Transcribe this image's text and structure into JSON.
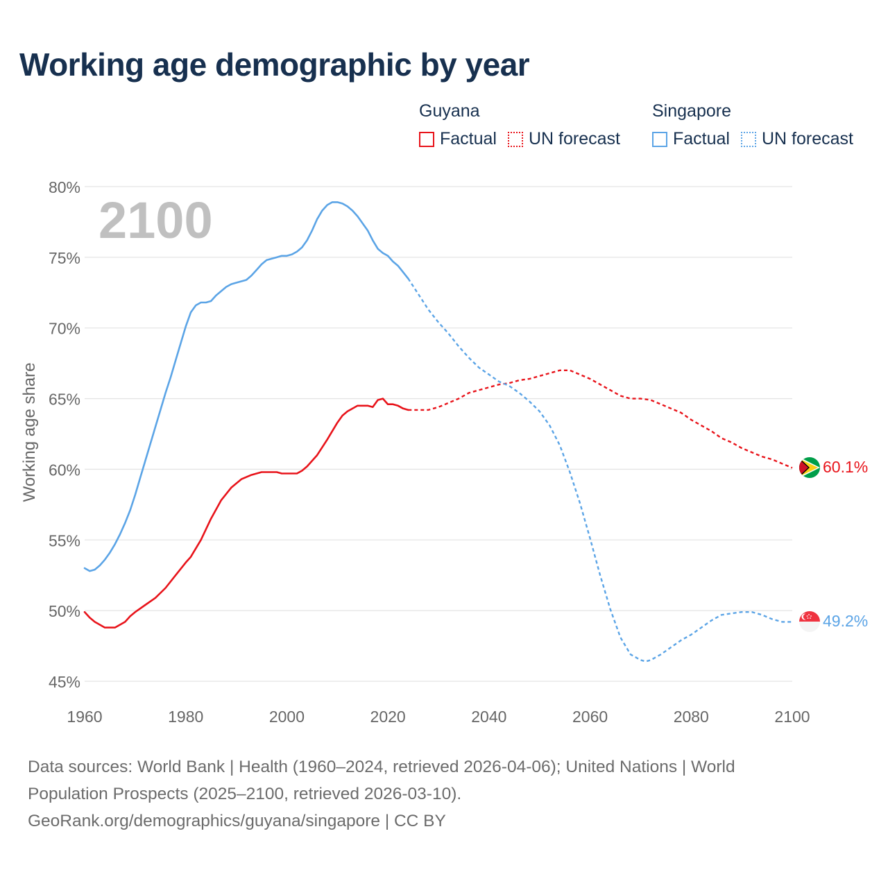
{
  "title": "Working age demographic by year",
  "legend": {
    "groups": [
      {
        "name": "Guyana",
        "factual_label": "Factual",
        "forecast_label": "UN forecast",
        "color": "#e8131a"
      },
      {
        "name": "Singapore",
        "factual_label": "Factual",
        "forecast_label": "UN forecast",
        "color": "#5ba4e6"
      }
    ]
  },
  "flags": {
    "guyana": "guyana-flag-icon",
    "singapore": "singapore-flag-icon"
  },
  "chart_data": {
    "type": "line",
    "title": "Working age demographic by year",
    "year_label": "2100",
    "xlabel": "",
    "ylabel": "Working age share",
    "xlim": [
      1960,
      2100
    ],
    "ylim": [
      45,
      80
    ],
    "x_ticks": [
      1960,
      1980,
      2000,
      2020,
      2040,
      2060,
      2080,
      2100
    ],
    "y_ticks": [
      45,
      50,
      55,
      60,
      65,
      70,
      75,
      80
    ],
    "y_tick_labels": [
      "45%",
      "50%",
      "55%",
      "60%",
      "65%",
      "70%",
      "75%",
      "80%"
    ],
    "grid": true,
    "factual_end_year": 2024,
    "series": [
      {
        "name": "Guyana",
        "color": "#e8131a",
        "end_label": "60.1%",
        "points": [
          [
            1960,
            49.9
          ],
          [
            1961,
            49.5
          ],
          [
            1962,
            49.2
          ],
          [
            1963,
            49.0
          ],
          [
            1964,
            48.8
          ],
          [
            1965,
            48.8
          ],
          [
            1966,
            48.8
          ],
          [
            1967,
            49.0
          ],
          [
            1968,
            49.2
          ],
          [
            1969,
            49.6
          ],
          [
            1970,
            49.9
          ],
          [
            1972,
            50.4
          ],
          [
            1974,
            50.9
          ],
          [
            1976,
            51.6
          ],
          [
            1978,
            52.5
          ],
          [
            1980,
            53.4
          ],
          [
            1981,
            53.8
          ],
          [
            1983,
            55.0
          ],
          [
            1985,
            56.5
          ],
          [
            1987,
            57.8
          ],
          [
            1989,
            58.7
          ],
          [
            1991,
            59.3
          ],
          [
            1993,
            59.6
          ],
          [
            1995,
            59.8
          ],
          [
            1998,
            59.8
          ],
          [
            1999,
            59.7
          ],
          [
            2002,
            59.7
          ],
          [
            2003,
            59.9
          ],
          [
            2004,
            60.2
          ],
          [
            2006,
            61.0
          ],
          [
            2008,
            62.1
          ],
          [
            2010,
            63.3
          ],
          [
            2011,
            63.8
          ],
          [
            2012,
            64.1
          ],
          [
            2014,
            64.5
          ],
          [
            2016,
            64.5
          ],
          [
            2017,
            64.4
          ],
          [
            2018,
            64.9
          ],
          [
            2019,
            65.0
          ],
          [
            2020,
            64.6
          ],
          [
            2021,
            64.6
          ],
          [
            2022,
            64.5
          ],
          [
            2023,
            64.3
          ],
          [
            2024,
            64.2
          ],
          [
            2026,
            64.2
          ],
          [
            2028,
            64.2
          ],
          [
            2030,
            64.4
          ],
          [
            2032,
            64.7
          ],
          [
            2034,
            65.0
          ],
          [
            2036,
            65.4
          ],
          [
            2038,
            65.6
          ],
          [
            2040,
            65.8
          ],
          [
            2042,
            66.0
          ],
          [
            2044,
            66.1
          ],
          [
            2046,
            66.3
          ],
          [
            2048,
            66.4
          ],
          [
            2050,
            66.6
          ],
          [
            2052,
            66.8
          ],
          [
            2054,
            67.0
          ],
          [
            2056,
            67.0
          ],
          [
            2058,
            66.7
          ],
          [
            2060,
            66.4
          ],
          [
            2062,
            66.0
          ],
          [
            2064,
            65.6
          ],
          [
            2066,
            65.2
          ],
          [
            2068,
            65.0
          ],
          [
            2070,
            65.0
          ],
          [
            2072,
            64.9
          ],
          [
            2074,
            64.6
          ],
          [
            2076,
            64.3
          ],
          [
            2078,
            64.0
          ],
          [
            2080,
            63.5
          ],
          [
            2082,
            63.1
          ],
          [
            2084,
            62.7
          ],
          [
            2086,
            62.2
          ],
          [
            2088,
            61.9
          ],
          [
            2090,
            61.5
          ],
          [
            2092,
            61.2
          ],
          [
            2094,
            60.9
          ],
          [
            2096,
            60.7
          ],
          [
            2098,
            60.4
          ],
          [
            2100,
            60.1
          ]
        ]
      },
      {
        "name": "Singapore",
        "color": "#5ba4e6",
        "end_label": "49.2%",
        "points": [
          [
            1960,
            53.0
          ],
          [
            1961,
            52.8
          ],
          [
            1962,
            52.9
          ],
          [
            1963,
            53.2
          ],
          [
            1964,
            53.6
          ],
          [
            1965,
            54.1
          ],
          [
            1966,
            54.7
          ],
          [
            1967,
            55.4
          ],
          [
            1968,
            56.2
          ],
          [
            1969,
            57.1
          ],
          [
            1970,
            58.2
          ],
          [
            1971,
            59.4
          ],
          [
            1972,
            60.6
          ],
          [
            1973,
            61.8
          ],
          [
            1974,
            63.0
          ],
          [
            1975,
            64.2
          ],
          [
            1976,
            65.4
          ],
          [
            1977,
            66.5
          ],
          [
            1978,
            67.7
          ],
          [
            1979,
            68.9
          ],
          [
            1980,
            70.1
          ],
          [
            1981,
            71.1
          ],
          [
            1982,
            71.6
          ],
          [
            1983,
            71.8
          ],
          [
            1984,
            71.8
          ],
          [
            1985,
            71.9
          ],
          [
            1986,
            72.3
          ],
          [
            1987,
            72.6
          ],
          [
            1988,
            72.9
          ],
          [
            1989,
            73.1
          ],
          [
            1990,
            73.2
          ],
          [
            1991,
            73.3
          ],
          [
            1992,
            73.4
          ],
          [
            1993,
            73.7
          ],
          [
            1994,
            74.1
          ],
          [
            1995,
            74.5
          ],
          [
            1996,
            74.8
          ],
          [
            1997,
            74.9
          ],
          [
            1998,
            75.0
          ],
          [
            1999,
            75.1
          ],
          [
            2000,
            75.1
          ],
          [
            2001,
            75.2
          ],
          [
            2002,
            75.4
          ],
          [
            2003,
            75.7
          ],
          [
            2004,
            76.2
          ],
          [
            2005,
            76.9
          ],
          [
            2006,
            77.7
          ],
          [
            2007,
            78.3
          ],
          [
            2008,
            78.7
          ],
          [
            2009,
            78.9
          ],
          [
            2010,
            78.9
          ],
          [
            2011,
            78.8
          ],
          [
            2012,
            78.6
          ],
          [
            2013,
            78.3
          ],
          [
            2014,
            77.9
          ],
          [
            2015,
            77.4
          ],
          [
            2016,
            76.9
          ],
          [
            2017,
            76.2
          ],
          [
            2018,
            75.6
          ],
          [
            2019,
            75.3
          ],
          [
            2020,
            75.1
          ],
          [
            2021,
            74.7
          ],
          [
            2022,
            74.4
          ],
          [
            2024,
            73.5
          ],
          [
            2026,
            72.4
          ],
          [
            2028,
            71.3
          ],
          [
            2030,
            70.4
          ],
          [
            2032,
            69.6
          ],
          [
            2034,
            68.7
          ],
          [
            2036,
            67.9
          ],
          [
            2038,
            67.2
          ],
          [
            2040,
            66.7
          ],
          [
            2042,
            66.2
          ],
          [
            2044,
            65.9
          ],
          [
            2046,
            65.4
          ],
          [
            2048,
            64.8
          ],
          [
            2050,
            64.1
          ],
          [
            2052,
            63.1
          ],
          [
            2054,
            61.7
          ],
          [
            2056,
            59.8
          ],
          [
            2058,
            57.6
          ],
          [
            2060,
            55.1
          ],
          [
            2062,
            52.5
          ],
          [
            2064,
            50.1
          ],
          [
            2066,
            48.1
          ],
          [
            2068,
            46.9
          ],
          [
            2070,
            46.5
          ],
          [
            2071,
            46.4
          ],
          [
            2072,
            46.5
          ],
          [
            2074,
            46.9
          ],
          [
            2076,
            47.4
          ],
          [
            2078,
            47.9
          ],
          [
            2080,
            48.3
          ],
          [
            2082,
            48.8
          ],
          [
            2084,
            49.3
          ],
          [
            2086,
            49.7
          ],
          [
            2088,
            49.8
          ],
          [
            2090,
            49.9
          ],
          [
            2092,
            49.9
          ],
          [
            2094,
            49.7
          ],
          [
            2096,
            49.4
          ],
          [
            2098,
            49.2
          ],
          [
            2100,
            49.2
          ]
        ]
      }
    ]
  },
  "footer": {
    "line1": "Data sources: World Bank | Health (1960–2024, retrieved 2026-04-06); United Nations | World",
    "line2": "Population Prospects (2025–2100, retrieved 2026-03-10).",
    "line3": "GeoRank.org/demographics/guyana/singapore | CC BY"
  }
}
